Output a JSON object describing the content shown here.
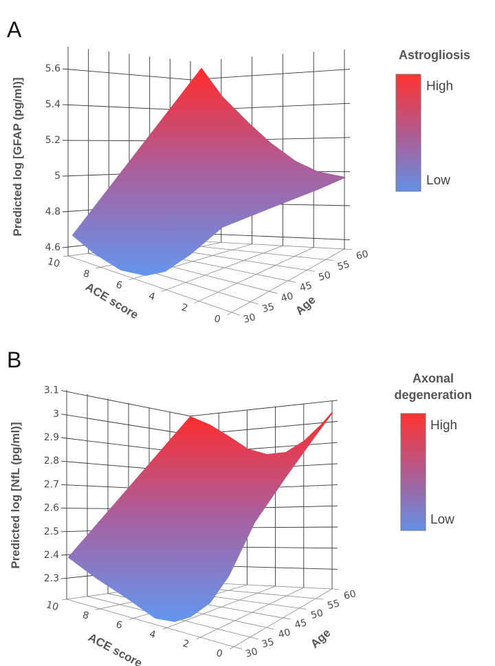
{
  "chart_data": [
    {
      "panel_label": "A",
      "type": "surface",
      "xlabel": "ACE score",
      "ylabel": "Age",
      "zlabel": "Predicted log [GFAP (pg/ml)]",
      "x_ticks": [
        "10",
        "8",
        "6",
        "4",
        "2",
        "0"
      ],
      "x_tick_values": [
        10,
        8,
        6,
        4,
        2,
        0
      ],
      "y_ticks": [
        "30",
        "35",
        "40",
        "45",
        "50",
        "55",
        "60"
      ],
      "y_tick_values": [
        30,
        35,
        40,
        45,
        50,
        55,
        60
      ],
      "z_ticks": [
        "4.6",
        "4.8",
        "5",
        "5.2",
        "5.4",
        "5.6"
      ],
      "z_tick_values": [
        4.6,
        4.8,
        5.0,
        5.2,
        5.4,
        5.6
      ],
      "xlim": [
        0,
        10
      ],
      "ylim": [
        30,
        60
      ],
      "zlim": [
        4.55,
        5.72
      ],
      "surface_corners": [
        {
          "ace": 10,
          "age": 30,
          "z": 4.67
        },
        {
          "ace": 10,
          "age": 60,
          "z": 5.65
        },
        {
          "ace": 0,
          "age": 60,
          "z": 5.0
        },
        {
          "ace": 4,
          "age": 30,
          "z": 4.6
        }
      ],
      "grid": true,
      "colorbar": {
        "title": "Astrogliosis",
        "high_label": "High",
        "low_label": "Low",
        "high_color": "#ff2b2b",
        "low_color": "#6495ed"
      }
    },
    {
      "panel_label": "B",
      "type": "surface",
      "xlabel": "ACE score",
      "ylabel": "Age",
      "zlabel": "Predicted log [NfL (pg/ml)]",
      "x_ticks": [
        "10",
        "8",
        "6",
        "4",
        "2",
        "0"
      ],
      "x_tick_values": [
        10,
        8,
        6,
        4,
        2,
        0
      ],
      "y_ticks": [
        "30",
        "35",
        "40",
        "45",
        "50",
        "55",
        "60"
      ],
      "y_tick_values": [
        30,
        35,
        40,
        45,
        50,
        55,
        60
      ],
      "z_ticks": [
        "2.3",
        "2.4",
        "2.5",
        "2.6",
        "2.7",
        "2.8",
        "2.9",
        "3",
        "3.1"
      ],
      "z_tick_values": [
        2.3,
        2.4,
        2.5,
        2.6,
        2.7,
        2.8,
        2.9,
        3.0,
        3.1
      ],
      "xlim": [
        0,
        10
      ],
      "ylim": [
        30,
        60
      ],
      "zlim": [
        2.21,
        3.1
      ],
      "surface_corners": [
        {
          "ace": 10,
          "age": 30,
          "z": 2.39
        },
        {
          "ace": 10,
          "age": 60,
          "z": 2.99
        },
        {
          "ace": 0,
          "age": 60,
          "z": 3.05
        },
        {
          "ace": 4,
          "age": 30,
          "z": 2.2
        }
      ],
      "grid": true,
      "colorbar": {
        "title_line1": "Axonal",
        "title_line2": "degeneration",
        "high_label": "High",
        "low_label": "Low",
        "high_color": "#ff2b2b",
        "low_color": "#6495ed"
      }
    }
  ]
}
